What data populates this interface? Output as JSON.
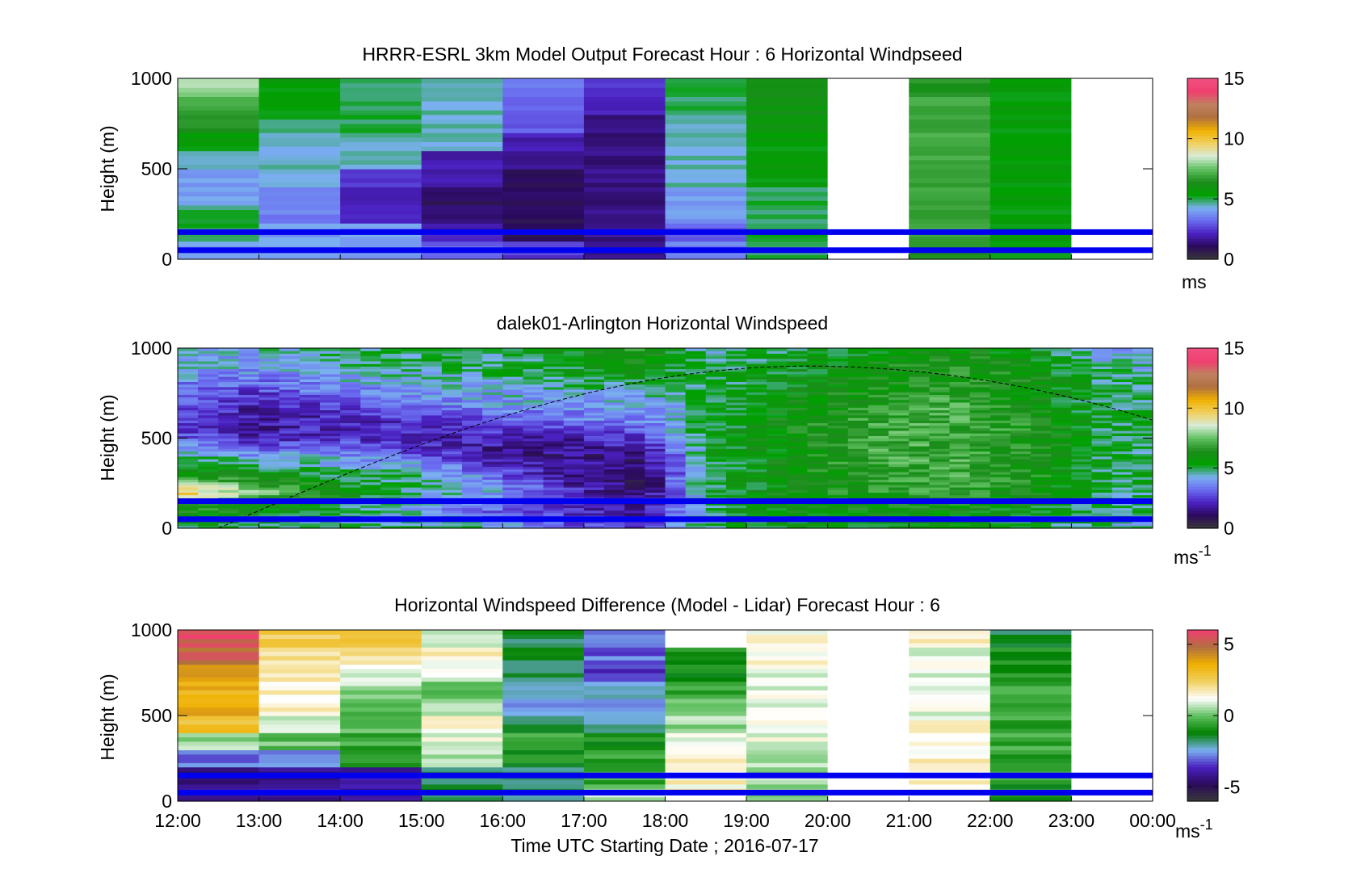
{
  "figure": {
    "xlabel": "Time UTC  Starting Date ; 2016-07-17",
    "x_ticks": [
      "12:00",
      "13:00",
      "14:00",
      "15:00",
      "16:00",
      "17:00",
      "18:00",
      "19:00",
      "20:00",
      "21:00",
      "22:00",
      "23:00",
      "00:00"
    ]
  },
  "colors": {
    "reference_line": "#0000ee",
    "missing_data": "#ffffff",
    "windspeed_colormap": [
      "#3a3a3a",
      "#2a0a5a",
      "#4a20c0",
      "#6a6af0",
      "#7ab0f0",
      "#00a000",
      "#1c8c1c",
      "#60c060",
      "#d8ecd8",
      "#f0d060",
      "#f0b000",
      "#b07040",
      "#c08060",
      "#f04070",
      "#f05080"
    ],
    "difference_colormap": [
      "#3a3a3a",
      "#2a0a5a",
      "#4a20c0",
      "#7ab0f0",
      "#008000",
      "#60c060",
      "#ffffff",
      "#f0d060",
      "#f0b000",
      "#b07040",
      "#f04070"
    ]
  },
  "chart_data": [
    {
      "type": "heatmap",
      "title": "HRRR-ESRL 3km Model Output   Forecast Hour : 6 Horizontal Windpseed",
      "ylabel": "Height (m)",
      "ylim": [
        0,
        1000
      ],
      "y_ticks": [
        "0",
        "500",
        "1000"
      ],
      "x_categories": [
        "12:00",
        "13:00",
        "14:00",
        "15:00",
        "16:00",
        "17:00",
        "18:00",
        "19:00",
        "20:00",
        "21:00",
        "22:00",
        "23:00"
      ],
      "colorbar": {
        "clim": [
          0,
          15
        ],
        "ticks": [
          "0",
          "5",
          "10",
          "15"
        ],
        "label": "ms"
      },
      "reference_lines_m": [
        50,
        150
      ],
      "columns": [
        {
          "start": "12:00",
          "speeds": [
            4,
            5,
            5,
            4,
            4,
            4.5,
            5.5,
            6.5,
            7,
            8
          ]
        },
        {
          "start": "13:00",
          "speeds": [
            4,
            4,
            3.5,
            3.5,
            4.5,
            4.5,
            4.5,
            5,
            5.5,
            5.5
          ]
        },
        {
          "start": "14:00",
          "speeds": [
            4,
            4,
            2,
            2,
            2.5,
            4.5,
            4.5,
            5,
            5,
            5
          ]
        },
        {
          "start": "15:00",
          "speeds": [
            3,
            2,
            1.5,
            1,
            2,
            2,
            4.5,
            4.5,
            4.5,
            4.5
          ]
        },
        {
          "start": "16:00",
          "speeds": [
            2.5,
            1,
            1,
            1,
            1,
            1.5,
            2,
            3,
            3,
            3.5
          ]
        },
        {
          "start": "17:00",
          "speeds": [
            1.5,
            1.5,
            1.5,
            1.5,
            1.5,
            1.5,
            1.5,
            1.5,
            2,
            2.5
          ]
        },
        {
          "start": "18:00",
          "speeds": [
            3.5,
            3,
            4,
            4,
            4.5,
            4.5,
            4.5,
            4.5,
            5,
            5
          ]
        },
        {
          "start": "19:00",
          "speeds": [
            5,
            5,
            5,
            5,
            5.5,
            5.5,
            5.5,
            6,
            6,
            6
          ]
        },
        {
          "start": "20:00",
          "speeds": [
            null,
            null,
            null,
            null,
            null,
            null,
            null,
            null,
            null,
            null
          ]
        },
        {
          "start": "21:00",
          "speeds": [
            6.5,
            7,
            7,
            7,
            7,
            7,
            7,
            7,
            7,
            6.5
          ]
        },
        {
          "start": "22:00",
          "speeds": [
            5.5,
            5.5,
            5.5,
            5.5,
            5.5,
            5.5,
            5.5,
            5.5,
            5.5,
            5.5
          ]
        },
        {
          "start": "23:00",
          "speeds": [
            null,
            null,
            null,
            null,
            null,
            null,
            null,
            null,
            null,
            null
          ]
        }
      ]
    },
    {
      "type": "heatmap",
      "title": "dalek01-Arlington  Horizontal Windspeed",
      "ylabel": "Height (m)",
      "ylim": [
        0,
        1000
      ],
      "y_ticks": [
        "0",
        "500",
        "1000"
      ],
      "x_range": [
        "12:00",
        "00:00"
      ],
      "colorbar": {
        "clim": [
          0,
          15
        ],
        "ticks": [
          "0",
          "5",
          "10",
          "15"
        ],
        "label": "ms",
        "label_exponent": "-1"
      },
      "reference_lines_m": [
        50,
        150
      ],
      "boundary_layer_curve": {
        "start": "12:30",
        "peak_time": "19:45",
        "peak_height_m": 900,
        "end_time": "00:00",
        "end_height_m": 600
      },
      "profiles": [
        {
          "time": "12:00",
          "speeds": [
            5,
            6,
            10,
            6,
            5,
            3,
            2.5,
            3,
            3.5,
            4.5,
            4
          ]
        },
        {
          "time": "13:00",
          "speeds": [
            5,
            6,
            8,
            6,
            4,
            2,
            1.8,
            2,
            3,
            4,
            4.5
          ]
        },
        {
          "time": "14:00",
          "speeds": [
            5,
            5,
            6,
            5,
            4,
            2.5,
            2,
            3,
            4,
            4.5,
            5
          ]
        },
        {
          "time": "15:00",
          "speeds": [
            5,
            4,
            4.5,
            5,
            3,
            2,
            2.5,
            3.5,
            4,
            5,
            5
          ]
        },
        {
          "time": "16:00",
          "speeds": [
            4.5,
            3,
            4,
            3,
            1.5,
            2,
            3,
            4,
            4.5,
            5,
            4.5
          ]
        },
        {
          "time": "17:00",
          "speeds": [
            3,
            2,
            2,
            1.5,
            1.5,
            2,
            3.5,
            4,
            5,
            5.5,
            6
          ]
        },
        {
          "time": "17:45",
          "speeds": [
            2.5,
            1.5,
            1.2,
            1.2,
            1.5,
            2.5,
            3.5,
            4,
            5,
            6,
            6.5
          ]
        },
        {
          "time": "18:30",
          "speeds": [
            5,
            5,
            5,
            5,
            5,
            5.5,
            5,
            5,
            5,
            5,
            4.5
          ]
        },
        {
          "time": "19:30",
          "speeds": [
            5.5,
            6,
            6,
            6,
            6,
            6,
            6,
            6,
            5.5,
            5.5,
            5
          ]
        },
        {
          "time": "20:30",
          "speeds": [
            5.5,
            6,
            6.5,
            6.5,
            7,
            7,
            7,
            6.5,
            6,
            6,
            5.5
          ]
        },
        {
          "time": "21:30",
          "speeds": [
            5.5,
            6,
            7,
            7,
            7,
            7,
            7,
            7,
            6.5,
            6.5,
            6
          ]
        },
        {
          "time": "22:30",
          "speeds": [
            5,
            5.5,
            6,
            6.5,
            6.5,
            6.5,
            6.5,
            6,
            6,
            6,
            5.5
          ]
        },
        {
          "time": "23:30",
          "speeds": [
            4.5,
            5,
            5,
            5,
            5,
            5,
            5,
            5,
            5,
            4.5,
            4
          ]
        }
      ]
    },
    {
      "type": "heatmap",
      "title": "Horizontal Windspeed Difference (Model - Lidar) Forecast Hour : 6",
      "ylabel": "Height (m)",
      "ylim": [
        0,
        1000
      ],
      "y_ticks": [
        "0",
        "500",
        "1000"
      ],
      "x_categories": [
        "12:00",
        "13:00",
        "14:00",
        "15:00",
        "16:00",
        "17:00",
        "18:00",
        "19:00",
        "20:00",
        "21:00",
        "22:00",
        "23:00"
      ],
      "colorbar": {
        "clim": [
          -6,
          6
        ],
        "ticks": [
          "-5",
          "0",
          "5"
        ],
        "label": "ms",
        "label_exponent": "-1"
      },
      "reference_lines_m": [
        50,
        150
      ],
      "columns": [
        {
          "start": "12:00",
          "diffs": [
            -4,
            -4.5,
            -3,
            0.5,
            3,
            3.5,
            3.5,
            4,
            5,
            5.5
          ]
        },
        {
          "start": "13:00",
          "diffs": [
            -4,
            -4,
            -2.5,
            0,
            1,
            1.5,
            1.5,
            2,
            2,
            2.5
          ]
        },
        {
          "start": "14:00",
          "diffs": [
            -4,
            -4,
            -1,
            -0.5,
            0,
            0,
            0.5,
            1,
            2,
            3
          ]
        },
        {
          "start": "15:00",
          "diffs": [
            -1.5,
            -1.5,
            0.5,
            1,
            1.5,
            0.5,
            0,
            1,
            1.5,
            0.5
          ]
        },
        {
          "start": "16:00",
          "diffs": [
            -2,
            -2,
            -1,
            -0.5,
            -1.5,
            -2.5,
            -2,
            -1.5,
            -1.5,
            -1.5
          ]
        },
        {
          "start": "17:00",
          "diffs": [
            0.5,
            -0.5,
            -0.5,
            -1,
            -2,
            -2.5,
            -2.5,
            -3.5,
            -3,
            -3
          ]
        },
        {
          "start": "18:00",
          "diffs": [
            1.5,
            1.5,
            1.5,
            1,
            0.5,
            0,
            -0.5,
            -1,
            -1,
            null
          ]
        },
        {
          "start": "19:00",
          "diffs": [
            0,
            0.5,
            0.5,
            1,
            1,
            1,
            1,
            1,
            1.5,
            1.5
          ]
        },
        {
          "start": "20:00",
          "diffs": [
            null,
            null,
            null,
            null,
            null,
            null,
            null,
            null,
            null,
            null
          ]
        },
        {
          "start": "21:00",
          "diffs": [
            1.5,
            1.5,
            1.5,
            1.5,
            1.5,
            1,
            1,
            1,
            1,
            1.5
          ]
        },
        {
          "start": "22:00",
          "diffs": [
            -1,
            -0.5,
            -0.5,
            -0.5,
            -0.5,
            -0.5,
            -0.5,
            -1,
            -1,
            -1.5
          ]
        },
        {
          "start": "23:00",
          "diffs": [
            null,
            null,
            null,
            null,
            null,
            null,
            null,
            null,
            null,
            null
          ]
        }
      ]
    }
  ]
}
